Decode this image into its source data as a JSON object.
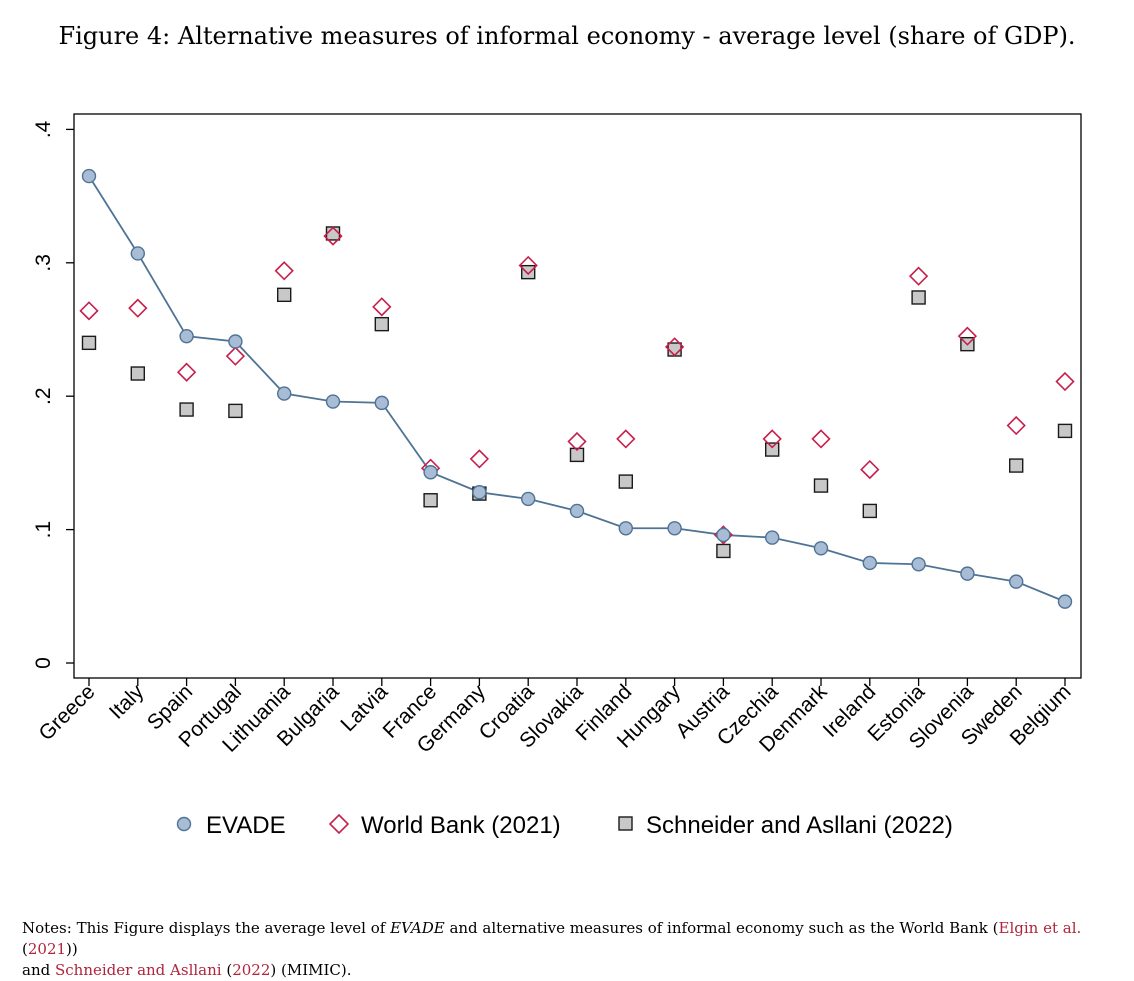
{
  "title": "Figure 4: Alternative measures of informal economy - average level (share of GDP).",
  "notes": {
    "part1": "Notes: This Figure displays the average level of ",
    "evade": "EVADE",
    "part2": " and alternative measures of informal economy such as the World Bank (",
    "ref1_authors": "Elgin et al.",
    "ref1_open": " (",
    "ref1_year": "2021",
    "ref1_close": "))",
    "part3": "and ",
    "ref2_authors": "Schneider and Asllani",
    "ref2_open": " (",
    "ref2_year": "2022",
    "part4": ") (MIMIC)."
  },
  "colors": {
    "evade_fill": "#a9bcd6",
    "evade_line": "#4f7394",
    "wb": "#c81e4a",
    "mimic_fill": "#c8c8c8",
    "mimic_edge": "#1a1a1a"
  },
  "chart_data": {
    "type": "scatter",
    "categories": [
      "Greece",
      "Italy",
      "Spain",
      "Portugal",
      "Lithuania",
      "Bulgaria",
      "Latvia",
      "France",
      "Germany",
      "Croatia",
      "Slovakia",
      "Finland",
      "Hungary",
      "Austria",
      "Czechia",
      "Denmark",
      "Ireland",
      "Estonia",
      "Slovenia",
      "Sweden",
      "Belgium"
    ],
    "ylim": [
      0,
      0.4
    ],
    "yticks": [
      0,
      0.1,
      0.2,
      0.3,
      0.4
    ],
    "ytick_labels": [
      "0",
      ".1",
      ".2",
      ".3",
      ".4"
    ],
    "series": [
      {
        "name": "EVADE",
        "marker": "circle",
        "connected": true,
        "values": [
          0.365,
          0.307,
          0.245,
          0.241,
          0.202,
          0.196,
          0.195,
          0.143,
          0.128,
          0.123,
          0.114,
          0.101,
          0.101,
          0.096,
          0.094,
          0.086,
          0.075,
          0.074,
          0.067,
          0.061,
          0.046
        ]
      },
      {
        "name": "World Bank (2021)",
        "marker": "diamond",
        "connected": false,
        "values": [
          0.264,
          0.266,
          0.218,
          0.23,
          0.294,
          0.32,
          0.267,
          0.146,
          0.153,
          0.298,
          0.166,
          0.168,
          0.237,
          0.096,
          0.168,
          0.168,
          0.145,
          0.29,
          0.245,
          0.178,
          0.211
        ]
      },
      {
        "name": "Schneider and Asllani (2022)",
        "marker": "square",
        "connected": false,
        "values": [
          0.24,
          0.217,
          0.19,
          0.189,
          0.276,
          0.322,
          0.254,
          0.122,
          0.127,
          0.293,
          0.156,
          0.136,
          0.235,
          0.084,
          0.16,
          0.133,
          0.114,
          0.274,
          0.239,
          0.148,
          0.174
        ]
      }
    ],
    "legend": {
      "position": "bottom",
      "labels": [
        "EVADE",
        "World Bank (2021)",
        "Schneider and Asllani (2022)"
      ]
    }
  }
}
